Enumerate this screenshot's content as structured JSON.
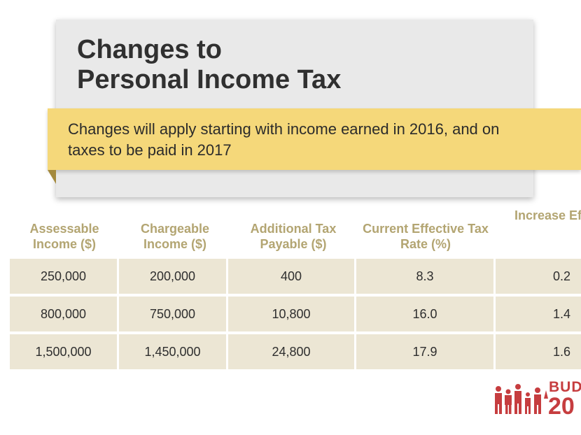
{
  "title": {
    "line1": "Changes to",
    "line2": "Personal Income Tax"
  },
  "note": "Changes will apply starting with income earned in 2016, and on taxes to be paid in 2017",
  "table": {
    "headers": [
      "Assessable Income ($)",
      "Chargeable Income ($)",
      "Additional Tax Payable ($)",
      "Current Effective Tax Rate (%)",
      "Increase Effective Rate (%"
    ],
    "rows": [
      [
        "250,000",
        "200,000",
        "400",
        "8.3",
        "0.2"
      ],
      [
        "800,000",
        "750,000",
        "10,800",
        "16.0",
        "1.4"
      ],
      [
        "1,500,000",
        "1,450,000",
        "24,800",
        "17.9",
        "1.6"
      ]
    ]
  },
  "logo": {
    "word": "BUD",
    "year": "20"
  },
  "colors": {
    "title_card": "#e9e9e9",
    "note_banner": "#f5d87a",
    "header_text": "#b3a572",
    "cell_bg": "#ece6d4",
    "logo_red": "#c63d3f"
  },
  "icons": [
    "family-figures-icon"
  ]
}
